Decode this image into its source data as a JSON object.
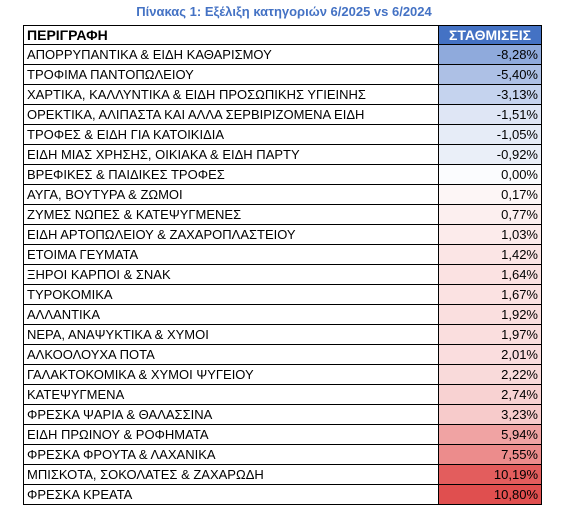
{
  "title": "Πίνακας 1: Εξέλιξη κατηγοριών 6/2025 vs 6/2024",
  "table": {
    "headers": [
      "ΠΕΡΙΓΡΑΦΗ",
      "ΣΤΑΘΜΙΣΕΙΣ"
    ],
    "rows": [
      {
        "label": "ΑΠΟΡΡΥΠΑΝΤΙΚΑ & ΕΙΔΗ ΚΑΘΑΡΙΣΜΟΥ",
        "value": "-8,28%",
        "color": "#8faadc"
      },
      {
        "label": "ΤΡΟΦΙΜΑ ΠΑΝΤΟΠΩΛΕΙΟΥ",
        "value": "-5,40%",
        "color": "#adc0e5"
      },
      {
        "label": "ΧΑΡΤΙΚΑ, ΚΑΛΛΥΝΤΙΚΑ & ΕΙΔΗ ΠΡΟΣΩΠΙΚΗΣ ΥΓΙΕΙΝΗΣ",
        "value": "-3,13%",
        "color": "#c5d3ee"
      },
      {
        "label": "ΟΡΕΚΤΙΚΑ, ΑΛΙΠΑΣΤΑ ΚΑΙ ΑΛΛΑ ΣΕΡΒΙΡΙΖΟΜΕΝΑ ΕΙΔΗ",
        "value": "-1,51%",
        "color": "#dfe6f5"
      },
      {
        "label": "ΤΡΟΦΕΣ & ΕΙΔΗ ΓΙΑ ΚΑΤΟΙΚΙΔΙΑ",
        "value": "-1,05%",
        "color": "#e6ecf7"
      },
      {
        "label": "ΕΙΔΗ ΜΙΑΣ ΧΡΗΣΗΣ, ΟΙΚΙΑΚΑ & ΕΙΔΗ ΠΑΡΤΥ",
        "value": "-0,92%",
        "color": "#eaeff8"
      },
      {
        "label": "ΒΡΕΦΙΚΕΣ & ΠΑΙΔΙΚΕΣ ΤΡΟΦΕΣ",
        "value": "0,00%",
        "color": "#fbfcfe"
      },
      {
        "label": "ΑΥΓΑ, ΒΟΥΤΥΡΑ & ΖΩΜΟΙ",
        "value": "0,17%",
        "color": "#fdf6f6"
      },
      {
        "label": "ΖΥΜΕΣ ΝΩΠΕΣ & ΚΑΤΕΨΥΓΜΕΝΕΣ",
        "value": "0,77%",
        "color": "#fcefef"
      },
      {
        "label": "ΕΙΔΗ ΑΡΤΟΠΩΛΕΙΟΥ & ΖΑΧΑΡΟΠΛΑΣΤΕΙΟΥ",
        "value": "1,03%",
        "color": "#fcebeb"
      },
      {
        "label": "ΕΤΟΙΜΑ ΓΕΥΜΑΤΑ",
        "value": "1,42%",
        "color": "#fbe5e5"
      },
      {
        "label": "ΞΗΡΟΙ ΚΑΡΠΟΙ & ΣΝΑΚ",
        "value": "1,64%",
        "color": "#fbe2e2"
      },
      {
        "label": "ΤΥΡΟΚΟΜΙΚΑ",
        "value": "1,67%",
        "color": "#fbe2e2"
      },
      {
        "label": "ΑΛΛΑΝΤΙΚΑ",
        "value": "1,92%",
        "color": "#fadfdf"
      },
      {
        "label": "ΝΕΡΑ, ΑΝΑΨΥΚΤΙΚΑ & ΧΥΜΟΙ",
        "value": "1,97%",
        "color": "#fadede"
      },
      {
        "label": "ΑΛΚΟΟΛΟΥΧΑ ΠΟΤΑ",
        "value": "2,01%",
        "color": "#faddde"
      },
      {
        "label": "ΓΑΛΑΚΤΟΚΟΜΙΚΑ & ΧΥΜΟΙ ΨΥΓΕΙΟΥ",
        "value": "2,22%",
        "color": "#f9dada"
      },
      {
        "label": "ΚΑΤΕΨΥΓΜΕΝΑ",
        "value": "2,74%",
        "color": "#f8d2d2"
      },
      {
        "label": "ΦΡΕΣΚΑ ΨΑΡΙΑ & ΘΑΛΑΣΣΙΝΑ",
        "value": "3,23%",
        "color": "#f7cbcb"
      },
      {
        "label": "ΕΙΔΗ ΠΡΩΙΝΟΥ & ΡΟΦΗΜΑΤΑ",
        "value": "5,94%",
        "color": "#f0a3a3"
      },
      {
        "label": "ΦΡΕΣΚΑ ΦΡΟΥΤΑ & ΛΑΧΑΝΙΚΑ",
        "value": "7,55%",
        "color": "#ec8c8c"
      },
      {
        "label": "ΜΠΙΣΚΟΤΑ, ΣΟΚΟΛΑΤΕΣ & ΖΑΧΑΡΩΔΗ",
        "value": "10,19%",
        "color": "#e35d5d"
      },
      {
        "label": "ΦΡΕΣΚΑ ΚΡΕΑΤΑ",
        "value": "10,80%",
        "color": "#e04f4f"
      }
    ]
  },
  "colors": {
    "title": "#4472c4",
    "header_accent": "#4472c4",
    "header_accent_text": "#ffffff"
  }
}
